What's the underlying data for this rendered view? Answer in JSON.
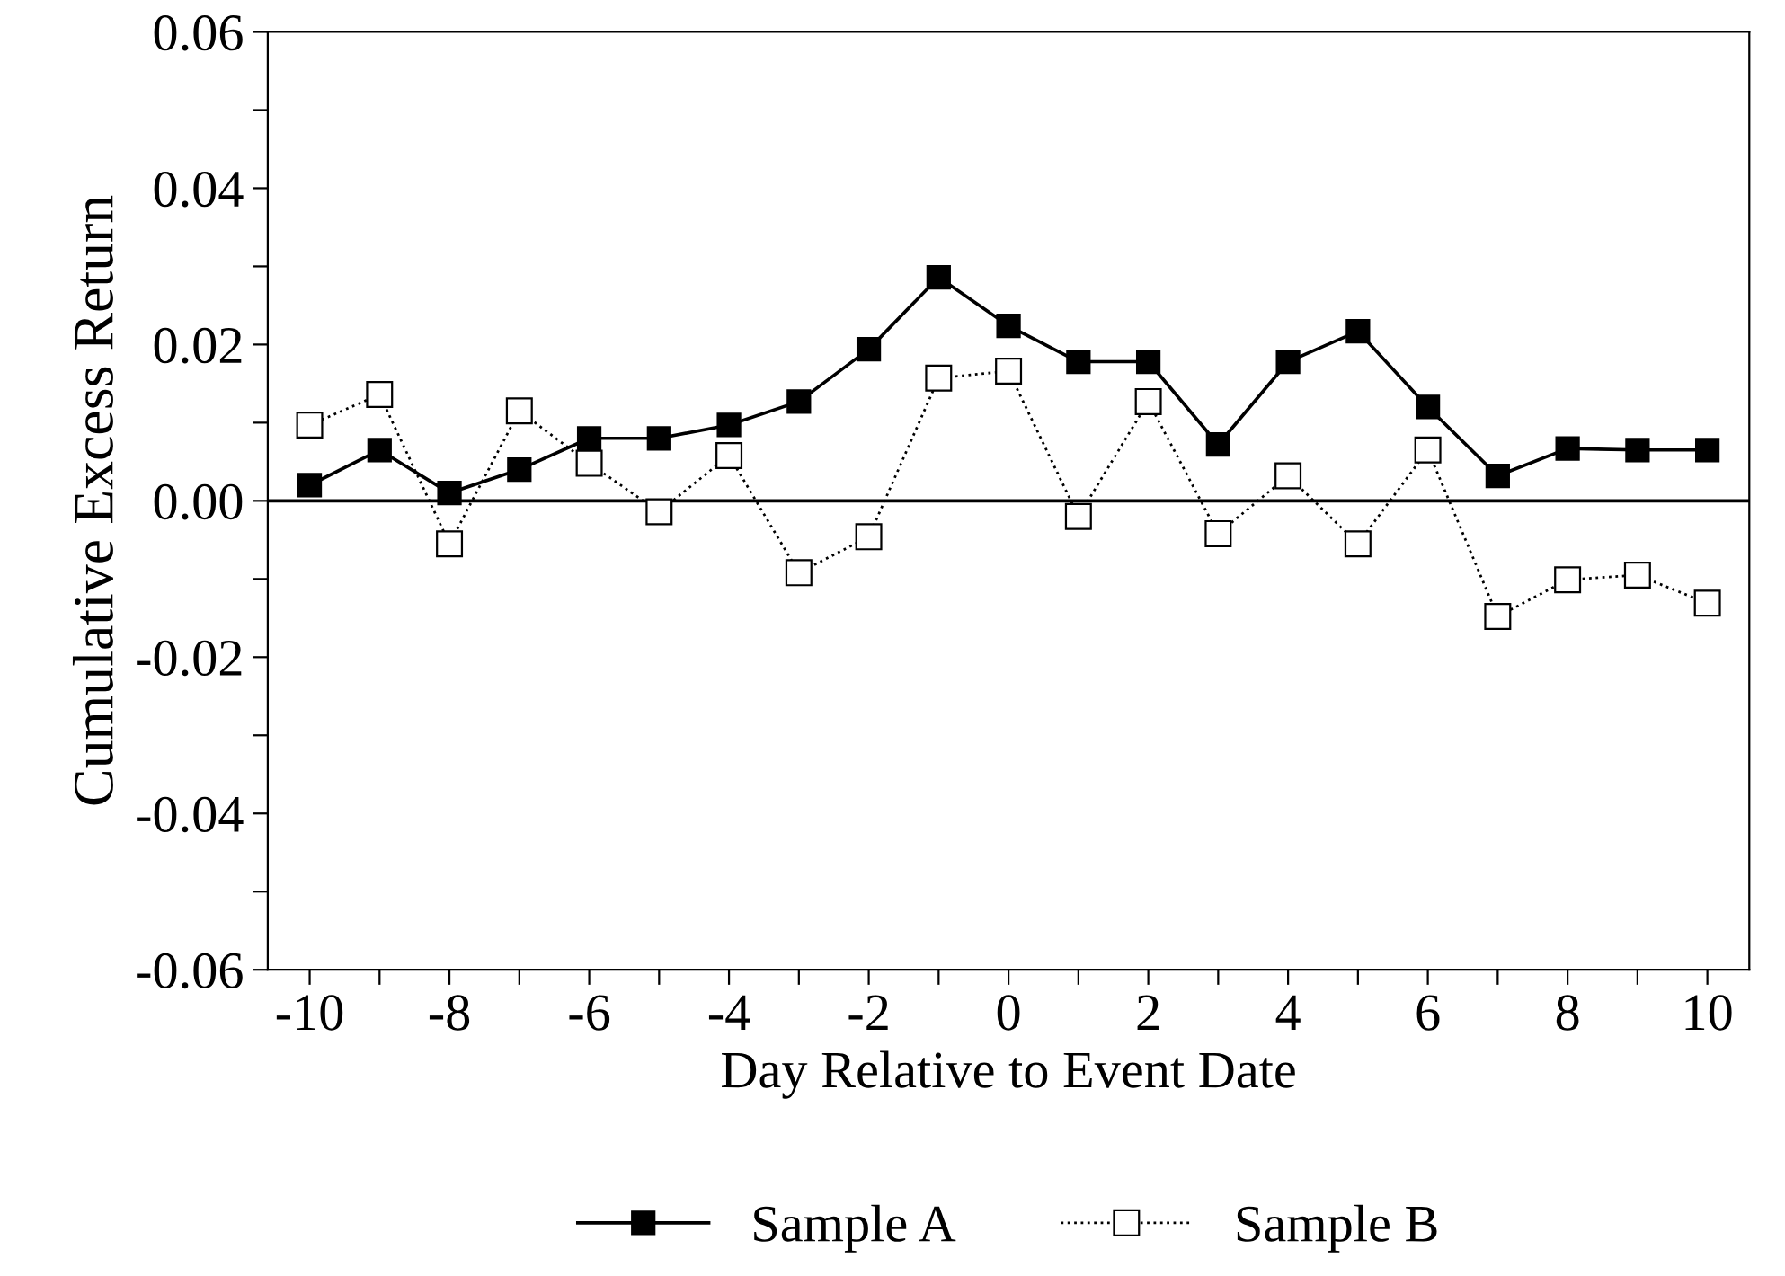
{
  "chart_data": {
    "type": "line",
    "xlabel": "Day Relative to Event Date",
    "ylabel": "Cumulative Excess Return",
    "x": [
      -10,
      -9,
      -8,
      -7,
      -6,
      -5,
      -4,
      -3,
      -2,
      -1,
      0,
      1,
      2,
      3,
      4,
      5,
      6,
      7,
      8,
      9,
      10
    ],
    "series": [
      {
        "name": "Sample A",
        "color": "#000000",
        "marker": "square",
        "line_style": "solid",
        "values": [
          0.002,
          0.0065,
          0.001,
          0.004,
          0.008,
          0.008,
          0.0097,
          0.0127,
          0.0194,
          0.0286,
          0.0224,
          0.0178,
          0.0178,
          0.0072,
          0.0178,
          0.0217,
          0.012,
          0.0032,
          0.0067,
          0.0065,
          0.0065
        ]
      },
      {
        "name": "Sample B",
        "color": "#000000",
        "marker": "square",
        "line_style": "dotted",
        "values": [
          0.0097,
          0.0136,
          -0.0055,
          0.0115,
          0.0048,
          -0.0014,
          0.0058,
          -0.0092,
          -0.0046,
          0.0157,
          0.0166,
          -0.002,
          0.0127,
          -0.0042,
          0.0032,
          -0.0055,
          0.0065,
          -0.0148,
          -0.0101,
          -0.0095,
          -0.0131
        ]
      }
    ],
    "xlim": [
      -10.6,
      10.6
    ],
    "xticks": [
      -10,
      {
        "value": -9,
        "label": null
      },
      -8,
      {
        "value": -7,
        "label": null
      },
      -6,
      {
        "value": -5,
        "label": null
      },
      -4,
      {
        "value": -3,
        "label": null
      },
      -2,
      {
        "value": -1,
        "label": null
      },
      0,
      {
        "value": 1,
        "label": null
      },
      2,
      {
        "value": 3,
        "label": null
      },
      4,
      {
        "value": 5,
        "label": null
      },
      6,
      {
        "value": 7,
        "label": null
      },
      8,
      {
        "value": 9,
        "label": null
      },
      10
    ],
    "ylim": [
      -0.06,
      0.06
    ],
    "yticks": [
      {
        "value": -0.06,
        "label": "-0.06"
      },
      {
        "value": -0.05,
        "label": null
      },
      {
        "value": -0.04,
        "label": "-0.04"
      },
      {
        "value": -0.03,
        "label": null
      },
      {
        "value": -0.02,
        "label": "-0.02"
      },
      {
        "value": -0.01,
        "label": null
      },
      {
        "value": 0,
        "label": "0.00"
      },
      {
        "value": 0.01,
        "label": null
      },
      {
        "value": 0.02,
        "label": "0.02"
      },
      {
        "value": 0.03,
        "label": null
      },
      {
        "value": 0.04,
        "label": "0.04"
      },
      {
        "value": 0.05,
        "label": null
      },
      {
        "value": 0.06,
        "label": "0.06"
      }
    ],
    "ref_lines": [
      {
        "axis": "y",
        "value": 0,
        "color": "#000000",
        "line_style": "solid"
      }
    ],
    "grid": false,
    "legend": "bottom"
  }
}
